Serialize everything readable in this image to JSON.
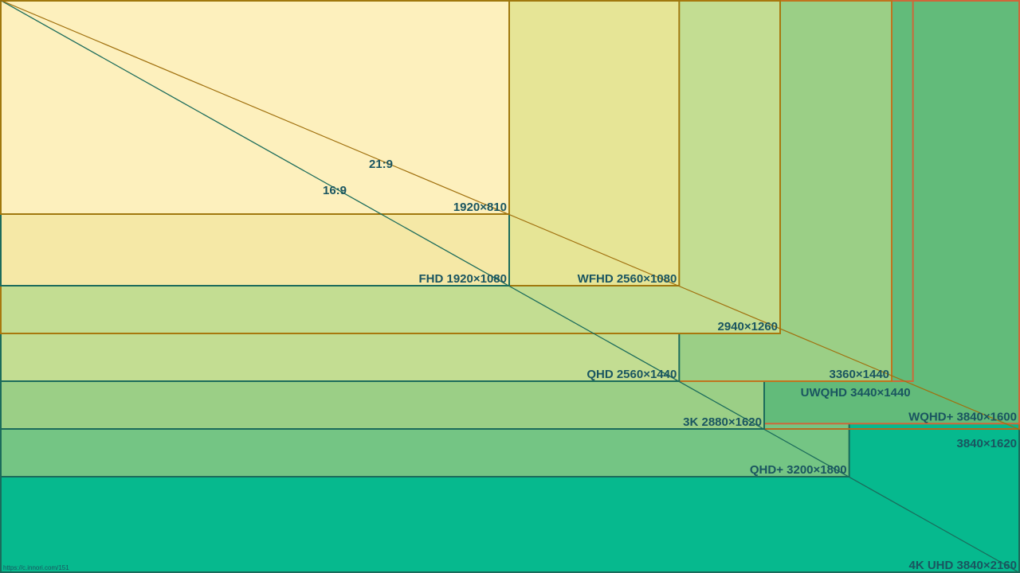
{
  "scale_max": {
    "width": 3840,
    "height": 2160
  },
  "nodes": [
    {
      "label": "4K UHD 3840×2160",
      "width": 3840,
      "height": 2160,
      "fill": "#06b98e",
      "stroke": "#1b6b5b"
    },
    {
      "label": "QHD+ 3200×1800",
      "width": 3200,
      "height": 1800,
      "fill": "#74c584",
      "stroke": "#1b6b5b"
    },
    {
      "label": "3840×1620",
      "width": 3840,
      "height": 1620,
      "fill": "none",
      "stroke": "#b8691f"
    },
    {
      "label": "WQHD+ 3840×1600",
      "width": 3840,
      "height": 1600,
      "fill": "#62bb7a",
      "stroke": "#d0663a"
    },
    {
      "label": "3K 2880×1620",
      "width": 2880,
      "height": 1620,
      "fill": "#9bcf86",
      "stroke": "#1b6b5b"
    },
    {
      "label": "UWQHD 3440×1440",
      "width": 3440,
      "height": 1440,
      "fill": "none",
      "stroke": "#cc6a3a"
    },
    {
      "label": "3360×1440",
      "width": 3360,
      "height": 1440,
      "fill": "#9bcf86",
      "stroke": "#c0741e"
    },
    {
      "label": "QHD 2560×1440",
      "width": 2560,
      "height": 1440,
      "fill": "#c3dd92",
      "stroke": "#1b6b5b"
    },
    {
      "label": "2940×1260",
      "width": 2940,
      "height": 1260,
      "fill": "#c3dd92",
      "stroke": "#a8780e"
    },
    {
      "label": "WFHD 2560×1080",
      "width": 2560,
      "height": 1080,
      "fill": "#e6e596",
      "stroke": "#a0780e"
    },
    {
      "label": "FHD 1920×1080",
      "width": 1920,
      "height": 1080,
      "fill": "#f5e8a6",
      "stroke": "#1b6b5b"
    },
    {
      "label": "1920×810",
      "width": 1920,
      "height": 810,
      "fill": "#fdf0bd",
      "stroke": "#a0780e"
    }
  ],
  "ratios": [
    "16:9",
    "21:9"
  ],
  "credit": "https://c.innori.com/151"
}
